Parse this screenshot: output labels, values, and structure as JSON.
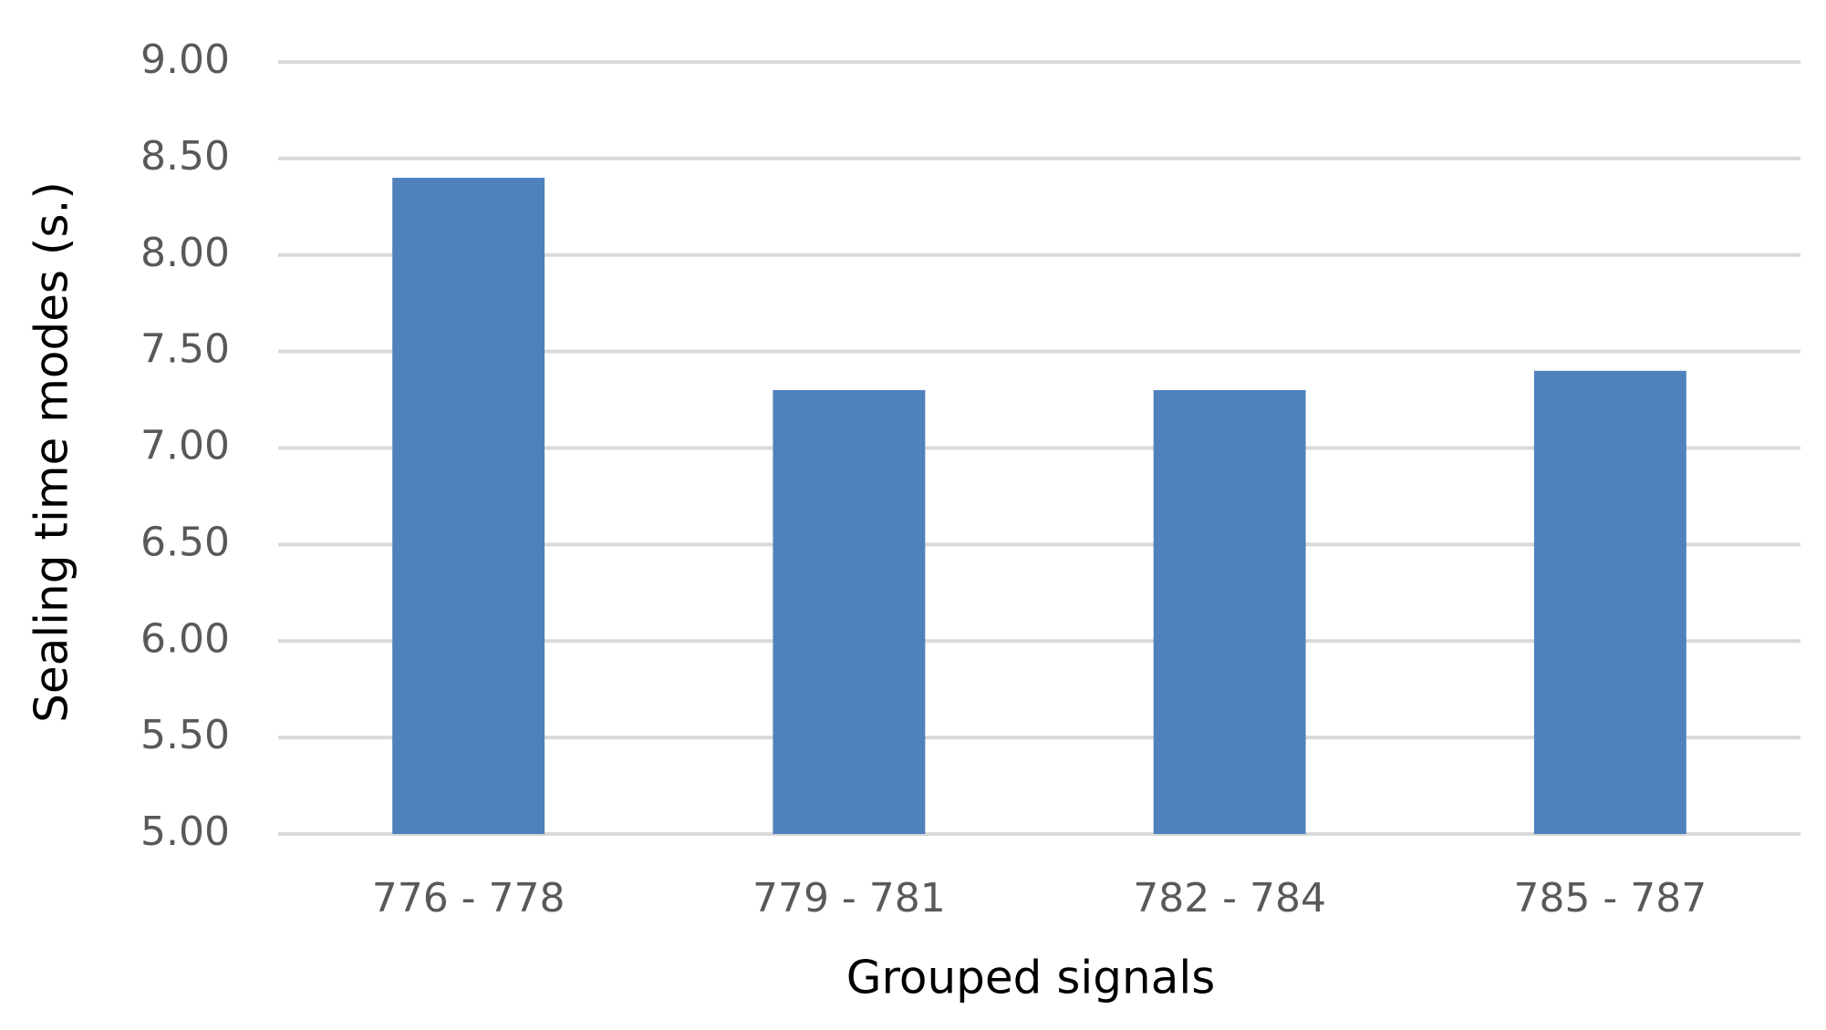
{
  "chart_data": {
    "type": "bar",
    "x_label": "Grouped signals",
    "y_label": "Sealing time modes (s.)",
    "categories": [
      "776 - 778",
      "779 - 781",
      "782 - 784",
      "785 - 787"
    ],
    "values": [
      8.4,
      7.3,
      7.3,
      7.4
    ],
    "color": "#4f81bd",
    "ylim": [
      5,
      9
    ],
    "yticks": [
      {
        "value": 5,
        "label": "5.00"
      },
      {
        "value": 5.5,
        "label": "5.50"
      },
      {
        "value": 6,
        "label": "6.00"
      },
      {
        "value": 6.5,
        "label": "6.50"
      },
      {
        "value": 7,
        "label": "7.00"
      },
      {
        "value": 7.5,
        "label": "7.50"
      },
      {
        "value": 8,
        "label": "8.00"
      },
      {
        "value": 8.5,
        "label": "8.50"
      },
      {
        "value": 9,
        "label": "9.00"
      }
    ],
    "grid": true
  }
}
